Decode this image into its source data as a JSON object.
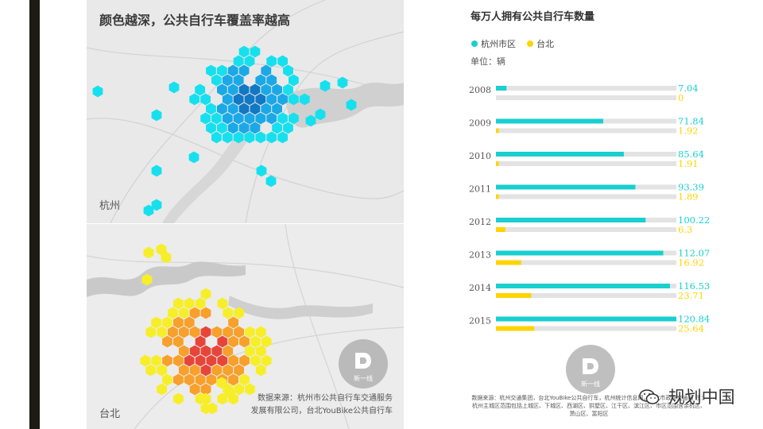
{
  "map_section": {
    "title": "颜色越深，公共自行车覆盖率越高",
    "top_city": "杭州",
    "bottom_city": "台北",
    "source_line1": "数据来源：杭州市公共自行车交通服务",
    "source_line2": "发展有限公司，台北YouBike公共自行车",
    "watermark_text": "新一线",
    "colors": {
      "hangzhou_light": "#17e0ee",
      "hangzhou_mid": "#1aa9e6",
      "hangzhou_dark": "#1378c4",
      "taipei_light": "#f7ee2a",
      "taipei_mid": "#f7a02b",
      "taipei_dark": "#e8453a"
    }
  },
  "chart_data": {
    "type": "bar",
    "title": "每万人拥有公共自行车数量",
    "unit_label": "单位：辆",
    "categories": [
      "2008",
      "2009",
      "2010",
      "2011",
      "2012",
      "2013",
      "2014",
      "2015"
    ],
    "series": [
      {
        "name": "杭州市区",
        "color": "#19cfcf",
        "values": [
          7.04,
          71.84,
          85.64,
          93.39,
          100.22,
          112.07,
          116.53,
          120.84
        ]
      },
      {
        "name": "台北",
        "color": "#ffd400",
        "values": [
          0,
          1.92,
          1.91,
          1.89,
          6.3,
          16.92,
          23.71,
          25.64
        ]
      }
    ],
    "value_labels": [
      [
        "7.04",
        "71.84",
        "85.64",
        "93.39",
        "100.22",
        "112.07",
        "116.53",
        "120.84"
      ],
      [
        "0",
        "1.92",
        "1.91",
        "1.89",
        "6.3",
        "16.92",
        "23.71",
        "25.64"
      ]
    ],
    "xlim": [
      0,
      120.84
    ],
    "track_color": "#e3e3e3",
    "legend_position": "top-left",
    "grid": false,
    "footnote": "数据来源：杭州交通集团，台北YouBike公共自行车，杭州统计信息网，台北市政府交通局 注：杭州主城区范围包括上城区、下城区、西湖区、拱墅区、江干区、滨江区、市区范围含余杭区、萧山区、富阳区"
  },
  "brand": {
    "name": "规划中国",
    "icon": "wechat-icon"
  }
}
